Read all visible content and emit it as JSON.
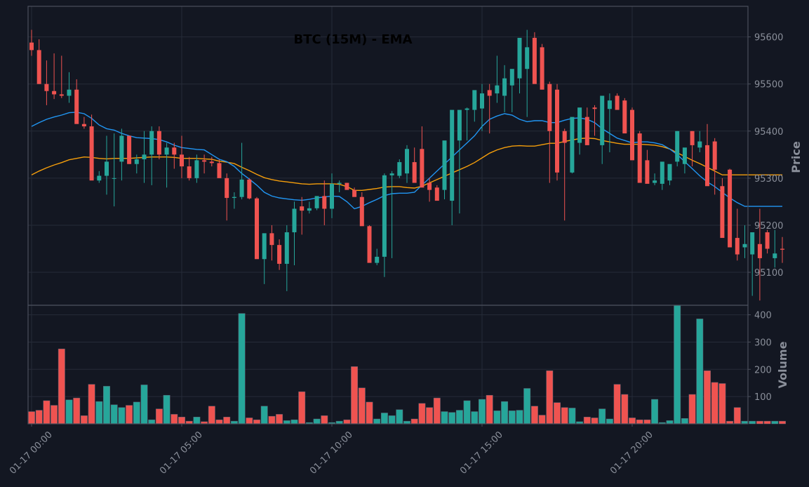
{
  "chart_data": {
    "type": "candlestick",
    "title": "BTC (15M) - EMA",
    "price_axis_label": "Price",
    "volume_axis_label": "Volume",
    "price_ylim": [
      95030,
      95665
    ],
    "volume_ylim": [
      0,
      435
    ],
    "price_ticks": [
      95100,
      95200,
      95300,
      95400,
      95500,
      95600
    ],
    "volume_ticks": [
      100,
      200,
      300,
      400
    ],
    "x_tick_labels": [
      "01-17 00:00",
      "01-17 05:00",
      "01-17 10:00",
      "01-17 15:00",
      "01-17 20:00"
    ],
    "x_tick_index": [
      0,
      20,
      40,
      60,
      80
    ],
    "colors": {
      "up": "#26a69a",
      "down": "#ef5350",
      "ema_fast": "#2196f3",
      "ema_slow": "#f59e0b",
      "background": "#131722"
    },
    "candles": {
      "open": [
        95588,
        95572,
        95500,
        95485,
        95478,
        95475,
        95488,
        95415,
        95410,
        95295,
        95305,
        95300,
        95335,
        95390,
        95330,
        95340,
        95350,
        95400,
        95350,
        95365,
        95350,
        95325,
        95300,
        95338,
        95335,
        95332,
        95300,
        95258,
        95260,
        95297,
        95257,
        95128,
        95183,
        95158,
        95118,
        95185,
        95240,
        95231,
        95236,
        95262,
        95235,
        95288,
        95290,
        95275,
        95260,
        95198,
        95120,
        95133,
        95306,
        95305,
        95310,
        95334,
        95362,
        95290,
        95280,
        95275,
        95252,
        95380,
        95445,
        95445,
        95448,
        95487,
        95480,
        95475,
        95497,
        95512,
        95532,
        95598,
        95578,
        95500,
        95488,
        95400,
        95312,
        95375,
        95430,
        95450,
        95370,
        95447,
        95475,
        95465,
        95445,
        95395,
        95338,
        95290,
        95288,
        95295,
        95335,
        95330,
        95400,
        95365,
        95370,
        95378,
        95283,
        95318,
        95173,
        95153,
        95138,
        95160,
        95185,
        95130,
        95150
      ],
      "high": [
        95615,
        95595,
        95550,
        95565,
        95560,
        95525,
        95510,
        95430,
        95435,
        95315,
        95390,
        95395,
        95405,
        95390,
        95350,
        95400,
        95410,
        95410,
        95375,
        95375,
        95390,
        95345,
        95350,
        95350,
        95345,
        95340,
        95310,
        95270,
        95375,
        95300,
        95260,
        95180,
        95200,
        95170,
        95200,
        95250,
        95260,
        95250,
        95260,
        95295,
        95310,
        95295,
        95290,
        95280,
        95270,
        95200,
        95150,
        95310,
        95315,
        95340,
        95370,
        95365,
        95410,
        95300,
        95285,
        95295,
        95285,
        95385,
        95450,
        95455,
        95500,
        95500,
        95560,
        95540,
        95510,
        95565,
        95615,
        95610,
        95585,
        95505,
        95500,
        95405,
        95390,
        95435,
        95450,
        95455,
        95470,
        95480,
        95480,
        95470,
        95450,
        95400,
        95360,
        95310,
        95300,
        95320,
        95400,
        95340,
        95400,
        95400,
        95415,
        95385,
        95300,
        95320,
        95235,
        95200,
        95150,
        95235,
        95190,
        95190,
        95175
      ],
      "low": [
        95560,
        95500,
        95455,
        95468,
        95470,
        95460,
        95470,
        95405,
        95400,
        95290,
        95265,
        95240,
        95295,
        95330,
        95310,
        95290,
        95285,
        95340,
        95280,
        95320,
        95300,
        95295,
        95290,
        95310,
        95325,
        95310,
        95210,
        95235,
        95255,
        95255,
        95225,
        95075,
        95125,
        95105,
        95060,
        95115,
        95180,
        95225,
        95232,
        95200,
        95215,
        95270,
        95280,
        95265,
        95230,
        95190,
        95115,
        95090,
        95130,
        95300,
        95290,
        95320,
        95330,
        95250,
        95260,
        95255,
        95200,
        95225,
        95380,
        95420,
        95400,
        95395,
        95460,
        95440,
        95440,
        95480,
        95430,
        95520,
        95490,
        95290,
        95295,
        95210,
        95310,
        95350,
        95375,
        95390,
        95330,
        95355,
        95460,
        95445,
        95425,
        95385,
        95330,
        95285,
        95275,
        95285,
        95325,
        95310,
        95325,
        95355,
        95355,
        95265,
        95265,
        95275,
        95125,
        95130,
        95050,
        95040,
        95140,
        95110,
        95120
      ],
      "close": [
        95572,
        95500,
        95485,
        95478,
        95475,
        95488,
        95415,
        95410,
        95295,
        95305,
        95335,
        95300,
        95390,
        95330,
        95340,
        95350,
        95400,
        95350,
        95365,
        95350,
        95325,
        95300,
        95338,
        95335,
        95332,
        95300,
        95258,
        95260,
        95297,
        95257,
        95128,
        95183,
        95158,
        95118,
        95185,
        95235,
        95231,
        95236,
        95262,
        95235,
        95288,
        95290,
        95275,
        95260,
        95198,
        95120,
        95133,
        95306,
        95310,
        95334,
        95362,
        95290,
        95280,
        95275,
        95252,
        95380,
        95445,
        95445,
        95448,
        95487,
        95480,
        95475,
        95497,
        95512,
        95532,
        95598,
        95578,
        95500,
        95488,
        95400,
        95312,
        95375,
        95430,
        95450,
        95370,
        95447,
        95475,
        95465,
        95445,
        95395,
        95338,
        95290,
        95288,
        95295,
        95335,
        95330,
        95400,
        95365,
        95370,
        95378,
        95283,
        95318,
        95173,
        95153,
        95138,
        95160,
        95185,
        95130,
        95150,
        95140,
        95148
      ],
      "volume": [
        45,
        50,
        85,
        68,
        275,
        88,
        95,
        30,
        145,
        82,
        138,
        70,
        60,
        68,
        80,
        143,
        15,
        55,
        105,
        35,
        25,
        10,
        25,
        8,
        65,
        15,
        25,
        10,
        405,
        22,
        15,
        65,
        28,
        35,
        12,
        15,
        118,
        5,
        18,
        30,
        5,
        10,
        15,
        210,
        132,
        80,
        18,
        40,
        30,
        52,
        10,
        18,
        75,
        60,
        95,
        45,
        42,
        50,
        85,
        45,
        90,
        105,
        48,
        82,
        48,
        50,
        130,
        65,
        32,
        195,
        78,
        60,
        58,
        8,
        25,
        22,
        55,
        18,
        145,
        108,
        22,
        15,
        15,
        90,
        5,
        12,
        435,
        20,
        108,
        385,
        195,
        152,
        148,
        10,
        60,
        10,
        10,
        10,
        10,
        10,
        10
      ],
      "ema_fast": [
        95410,
        95418,
        95425,
        95430,
        95434,
        95439,
        95440,
        95437,
        95427,
        95413,
        95405,
        95402,
        95395,
        95390,
        95386,
        95385,
        95384,
        95382,
        95377,
        95370,
        95365,
        95363,
        95361,
        95360,
        95350,
        95340,
        95335,
        95325,
        95310,
        95298,
        95285,
        95270,
        95262,
        95258,
        95256,
        95254,
        95253,
        95255,
        95258,
        95260,
        95262,
        95261,
        95250,
        95235,
        95240,
        95248,
        95255,
        95263,
        95267,
        95268,
        95268,
        95270,
        95285,
        95300,
        95315,
        95330,
        95345,
        95360,
        95375,
        95390,
        95410,
        95425,
        95432,
        95437,
        95434,
        95425,
        95420,
        95422,
        95422,
        95418,
        95418,
        95423,
        95427,
        95428,
        95425,
        95418,
        95405,
        95395,
        95385,
        95380,
        95375,
        95377,
        95377,
        95375,
        95371,
        95362,
        95350,
        95335,
        95320,
        95305,
        95292,
        95282,
        95270,
        95258,
        95248,
        95240,
        95240,
        95240,
        95240,
        95240,
        95240
      ],
      "ema_slow": [
        95307,
        95315,
        95322,
        95328,
        95333,
        95339,
        95342,
        95345,
        95344,
        95342,
        95341,
        95342,
        95342,
        95342,
        95343,
        95344,
        95345,
        95345,
        95345,
        95344,
        95342,
        95342,
        95342,
        95341,
        95340,
        95336,
        95334,
        95331,
        95323,
        95316,
        95308,
        95301,
        95297,
        95294,
        95292,
        95290,
        95288,
        95287,
        95288,
        95288,
        95288,
        95287,
        95282,
        95274,
        95274,
        95276,
        95278,
        95281,
        95282,
        95282,
        95280,
        95279,
        95283,
        95290,
        95297,
        95304,
        95311,
        95318,
        95325,
        95333,
        95343,
        95353,
        95360,
        95365,
        95368,
        95369,
        95368,
        95368,
        95371,
        95374,
        95374,
        95378,
        95381,
        95384,
        95385,
        95384,
        95380,
        95377,
        95374,
        95372,
        95372,
        95372,
        95371,
        95370,
        95367,
        95362,
        95354,
        95346,
        95338,
        95331,
        95323,
        95315,
        95307,
        95307,
        95307,
        95307,
        95307,
        95307,
        95307,
        95307,
        95307
      ]
    }
  }
}
